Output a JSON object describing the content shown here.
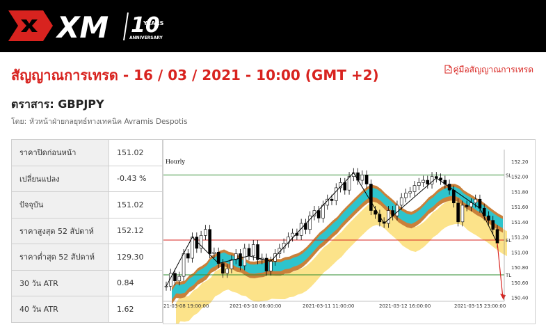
{
  "header": {
    "logo_text": "XM",
    "anniversary_number": "10",
    "anniversary_years": "YEARS",
    "anniversary_label": "ANNIVERSARY",
    "brand_color": "#d8231f"
  },
  "title": "สัญญาณการเทรด - 16 / 03 / 2021 - 10:00 (GMT +2)",
  "guide_link": {
    "label": "คู่มือสัญญาณการเทรด",
    "icon": "pdf-icon"
  },
  "instrument": "ตราสาร: GBPJPY",
  "byline": {
    "prefix": "โดย:",
    "author": "หัวหน้าฝ่ายกลยุทธ์ทางเทคนิค Avramis Despotis"
  },
  "stats": [
    {
      "label": "ราคาปิดก่อนหน้า",
      "value": "151.02"
    },
    {
      "label": "เปลี่ยนแปลง",
      "value": "-0.43 %"
    },
    {
      "label": "ปัจจุบัน",
      "value": "151.02"
    },
    {
      "label": "ราคาสูงสุด 52 สัปดาห์",
      "value": "152.12"
    },
    {
      "label": "ราคาต่ำสุด 52 สัปดาห์",
      "value": "129.30"
    },
    {
      "label": "30 วัน ATR",
      "value": "0.84"
    },
    {
      "label": "40 วัน ATR",
      "value": "1.62"
    }
  ],
  "chart_data": {
    "type": "candlestick",
    "title": "Hourly",
    "ylim": [
      150.35,
      152.3
    ],
    "yticks": [
      "152.20",
      "152.00",
      "151.80",
      "151.60",
      "151.40",
      "151.20",
      "151.00",
      "150.80",
      "150.60",
      "150.40"
    ],
    "xticks": [
      "21-03-08 19:00:00",
      "2021-03-10 06:00:00",
      "2021-03-11 11:00:00",
      "2021-03-12 16:00:00",
      "2021-03-15 23:00:00"
    ],
    "levels": [
      {
        "label": "SL",
        "value": 152.02,
        "color": "#2e8b2e"
      },
      {
        "label": "EL",
        "value": 151.16,
        "color": "#d8231f"
      },
      {
        "label": "TL",
        "value": 150.7,
        "color": "#2e8b2e"
      }
    ],
    "close_path": [
      150.55,
      150.72,
      150.62,
      150.68,
      150.98,
      150.92,
      151.2,
      151.05,
      151.22,
      151.3,
      150.98,
      151.0,
      150.85,
      150.72,
      150.78,
      150.9,
      150.98,
      150.82,
      151.05,
      150.95,
      151.1,
      150.9,
      150.92,
      150.75,
      150.88,
      150.98,
      151.05,
      151.12,
      151.2,
      151.25,
      151.22,
      151.38,
      151.3,
      151.48,
      151.55,
      151.45,
      151.62,
      151.7,
      151.68,
      151.85,
      151.92,
      151.82,
      152.0,
      152.05,
      151.95,
      152.02,
      151.9,
      151.55,
      151.5,
      151.4,
      151.38,
      151.55,
      151.48,
      151.62,
      151.72,
      151.78,
      151.8,
      151.88,
      151.92,
      151.95,
      151.9,
      152.0,
      151.98,
      151.95,
      151.9,
      151.82,
      151.65,
      151.4,
      151.62,
      151.6,
      151.65,
      151.7,
      151.58,
      151.48,
      151.42,
      151.3,
      151.12
    ],
    "forecast_arrow": {
      "from": 151.12,
      "to": 150.45,
      "color": "#d8231f"
    }
  }
}
